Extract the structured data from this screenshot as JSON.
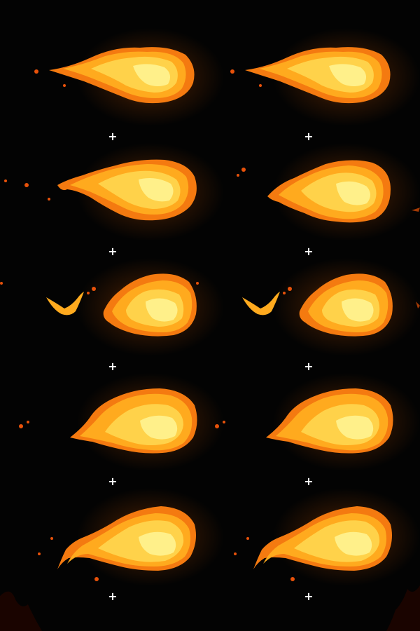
{
  "sprite_sheet": {
    "background": "#030303",
    "palette": {
      "outer": "#f47a10",
      "mid": "#ffaa1e",
      "inner": "#ffd24a",
      "core": "#fff08a",
      "glow": "#ff6a00",
      "ember": "#e8520a"
    },
    "pivot_icon": "crosshair-plus",
    "pivot_glyph": "+",
    "frames": [
      {
        "id": 1,
        "pose": "long-tail"
      },
      {
        "id": 2,
        "pose": "long-tail"
      },
      {
        "id": 3,
        "pose": "curled-tail"
      },
      {
        "id": 4,
        "pose": "short-tail"
      },
      {
        "id": 5,
        "pose": "detached-tail"
      },
      {
        "id": 6,
        "pose": "detached-tail"
      },
      {
        "id": 7,
        "pose": "flared-tail"
      },
      {
        "id": 8,
        "pose": "flared-tail"
      },
      {
        "id": 9,
        "pose": "drip-tail"
      },
      {
        "id": 10,
        "pose": "drip-tail"
      }
    ]
  }
}
